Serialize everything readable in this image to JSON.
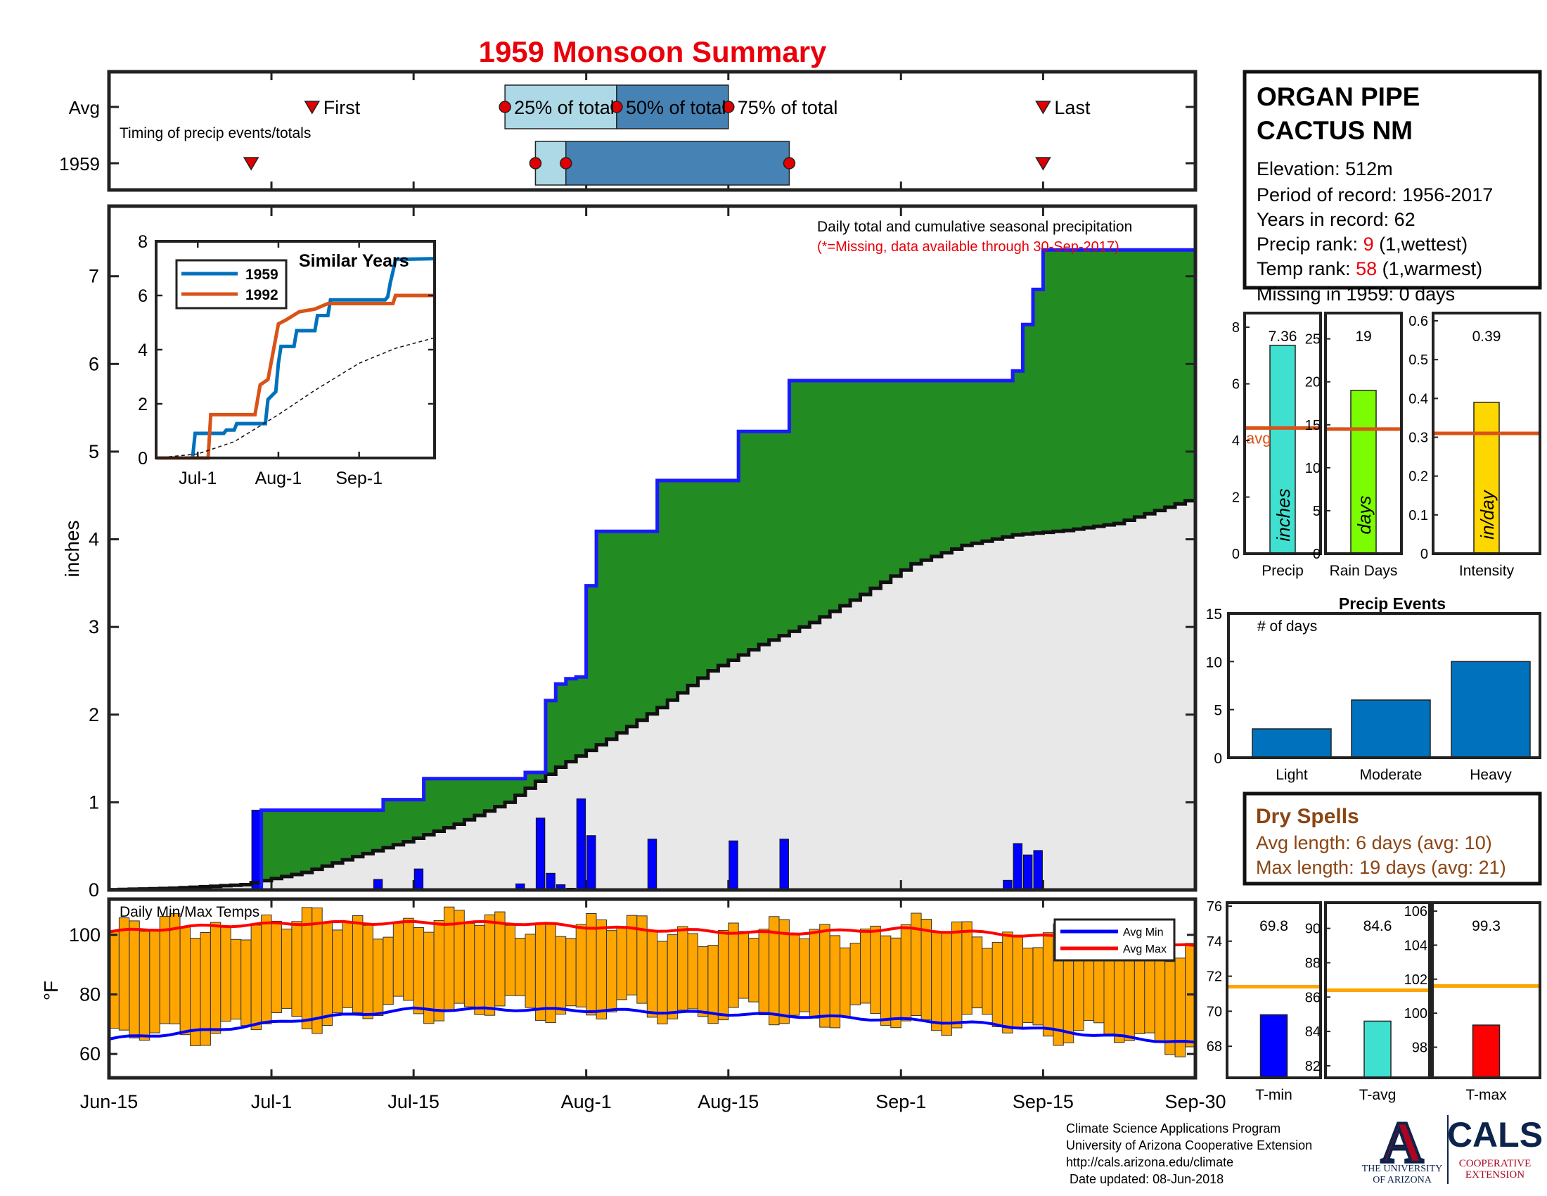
{
  "title": "1959 Monsoon Summary",
  "colors": {
    "title_red": "#e8000b",
    "fill_green": "#228b22",
    "avg_gray": "#e8e8e8",
    "cum_blue": "#1a1aff",
    "rain_blue": "#0000ff",
    "timing_light": "#add8e6",
    "timing_dark": "#4682b4",
    "temp_bar": "#ffa500",
    "avg_min": "#0000ff",
    "avg_max": "#ff0000",
    "precip_bar": "#40e0d0",
    "raindays_bar": "#7cfc00",
    "intensity_bar": "#ffd700",
    "avg_line": "#d95319",
    "events_bar": "#0072bd",
    "dry_brown": "#8b4513",
    "sim_1959": "#0072bd",
    "sim_1992": "#d95319",
    "tavg_line": "#ffa500",
    "tmin_bar": "#0000ff",
    "tavg_bar": "#40e0d0",
    "tmax_bar": "#ff0000"
  },
  "station": {
    "name_line1": "ORGAN PIPE",
    "name_line2": "CACTUS NM",
    "elevation": "Elevation: 512m",
    "period": "Period of record: 1956-2017",
    "years": "Years in record: 62",
    "precip_rank_label": "Precip rank: ",
    "precip_rank_value": "9",
    "precip_rank_note": " (1,wettest)",
    "temp_rank_label": "Temp rank: ",
    "temp_rank_value": "58",
    "temp_rank_note": " (1,warmest)",
    "missing": "Missing in 1959: 0 days"
  },
  "footer": {
    "line1": "Climate Science Applications Program",
    "line2": "University of Arizona Cooperative Extension",
    "line3": "http://cals.arizona.edu/climate",
    "line4": " Date updated: 08-Jun-2018",
    "ua_line1": "THE UNIVERSITY",
    "ua_line2": "OF ARIZONA",
    "ua_letter": "A",
    "cals_big": "CALS",
    "cals_line1": "COOPERATIVE",
    "cals_line2": "EXTENSION"
  },
  "chart_data": [
    {
      "id": "timing",
      "type": "bar",
      "subtitle": "Timing of precip events/totals",
      "rows": [
        "Avg",
        "1959"
      ],
      "avg_labels": {
        "first": "First",
        "p25": "25% of total",
        "p50": "50% of total",
        "p75": "75% of total",
        "last": "Last"
      },
      "avg": {
        "first": "Jul-5",
        "p25": "Jul-24",
        "p50": "Aug-4",
        "p75": "Aug-15",
        "last": "Sep-15"
      },
      "y1959": {
        "first": "Jun-29",
        "p25": "Jul-27",
        "p50": "Jul-30",
        "p75": "Aug-21",
        "last": "Sep-15"
      }
    },
    {
      "id": "precip",
      "type": "area",
      "title": "Daily total and cumulative seasonal precipitation",
      "note": "(*=Missing, data available through 30-Sep-2017)",
      "ylabel": "inches",
      "ylim": [
        0,
        7.8
      ],
      "yticks": [
        0,
        1,
        2,
        3,
        4,
        5,
        6,
        7
      ],
      "x_tick_labels": [
        "Jun-15",
        "Jul-1",
        "Jul-15",
        "Aug-1",
        "Aug-15",
        "Sep-1",
        "Sep-15",
        "Sep-30"
      ],
      "x_tick_days": [
        0,
        16,
        30,
        47,
        61,
        78,
        92,
        107
      ],
      "daily": [
        {
          "date": "Jun-30",
          "inches": 0.91
        },
        {
          "date": "Jul-12",
          "inches": 0.12
        },
        {
          "date": "Jul-16",
          "inches": 0.24
        },
        {
          "date": "Jul-26",
          "inches": 0.07
        },
        {
          "date": "Jul-28",
          "inches": 0.82
        },
        {
          "date": "Jul-29",
          "inches": 0.19
        },
        {
          "date": "Jul-30",
          "inches": 0.06
        },
        {
          "date": "Jul-31",
          "inches": 0.02
        },
        {
          "date": "Aug-1",
          "inches": 1.04
        },
        {
          "date": "Aug-2",
          "inches": 0.62
        },
        {
          "date": "Aug-8",
          "inches": 0.58
        },
        {
          "date": "Aug-16",
          "inches": 0.56
        },
        {
          "date": "Aug-21",
          "inches": 0.58
        },
        {
          "date": "Sep-12",
          "inches": 0.11
        },
        {
          "date": "Sep-13",
          "inches": 0.53
        },
        {
          "date": "Sep-14",
          "inches": 0.4
        },
        {
          "date": "Sep-15",
          "inches": 0.45
        }
      ],
      "avg_cumulative": [
        {
          "date": "Jun-15",
          "inches": 0
        },
        {
          "date": "Jun-22",
          "inches": 0.02
        },
        {
          "date": "Jun-29",
          "inches": 0.06
        },
        {
          "date": "Jul-5",
          "inches": 0.2
        },
        {
          "date": "Jul-10",
          "inches": 0.38
        },
        {
          "date": "Jul-15",
          "inches": 0.55
        },
        {
          "date": "Jul-20",
          "inches": 0.75
        },
        {
          "date": "Jul-25",
          "inches": 1.0
        },
        {
          "date": "Jul-30",
          "inches": 1.4
        },
        {
          "date": "Aug-4",
          "inches": 1.72
        },
        {
          "date": "Aug-9",
          "inches": 2.08
        },
        {
          "date": "Aug-14",
          "inches": 2.5
        },
        {
          "date": "Aug-19",
          "inches": 2.8
        },
        {
          "date": "Aug-24",
          "inches": 3.05
        },
        {
          "date": "Aug-29",
          "inches": 3.37
        },
        {
          "date": "Sep-3",
          "inches": 3.72
        },
        {
          "date": "Sep-8",
          "inches": 3.93
        },
        {
          "date": "Sep-13",
          "inches": 4.05
        },
        {
          "date": "Sep-18",
          "inches": 4.1
        },
        {
          "date": "Sep-23",
          "inches": 4.18
        },
        {
          "date": "Sep-30",
          "inches": 4.44
        }
      ]
    },
    {
      "id": "similar_years",
      "type": "line",
      "title": "Similar Years",
      "ylim": [
        0,
        8
      ],
      "yticks": [
        0,
        2,
        4,
        6,
        8
      ],
      "x_tick_labels": [
        "Jul-1",
        "Aug-1",
        "Sep-1"
      ],
      "series": [
        {
          "name": "1959",
          "points": [
            [
              "Jun-15",
              0
            ],
            [
              "Jun-29",
              0
            ],
            [
              "Jun-30",
              0.91
            ],
            [
              "Jul-11",
              0.91
            ],
            [
              "Jul-12",
              1.03
            ],
            [
              "Jul-15",
              1.03
            ],
            [
              "Jul-16",
              1.27
            ],
            [
              "Jul-27",
              1.27
            ],
            [
              "Jul-28",
              2.16
            ],
            [
              "Jul-31",
              2.45
            ],
            [
              "Aug-1",
              3.5
            ],
            [
              "Aug-2",
              4.12
            ],
            [
              "Aug-7",
              4.12
            ],
            [
              "Aug-8",
              4.7
            ],
            [
              "Aug-15",
              4.7
            ],
            [
              "Aug-16",
              5.26
            ],
            [
              "Aug-20",
              5.26
            ],
            [
              "Aug-21",
              5.84
            ],
            [
              "Sep-11",
              5.84
            ],
            [
              "Sep-12",
              5.95
            ],
            [
              "Sep-13",
              6.48
            ],
            [
              "Sep-14",
              6.88
            ],
            [
              "Sep-15",
              7.33
            ],
            [
              "Sep-30",
              7.36
            ]
          ]
        },
        {
          "name": "1992",
          "points": [
            [
              "Jun-15",
              0
            ],
            [
              "Jul-5",
              0
            ],
            [
              "Jul-6",
              1.6
            ],
            [
              "Jul-23",
              1.6
            ],
            [
              "Jul-25",
              2.7
            ],
            [
              "Jul-28",
              2.9
            ],
            [
              "Aug-1",
              4.95
            ],
            [
              "Aug-4",
              5.1
            ],
            [
              "Aug-9",
              5.4
            ],
            [
              "Aug-15",
              5.5
            ],
            [
              "Aug-20",
              5.7
            ],
            [
              "Sep-14",
              5.7
            ],
            [
              "Sep-15",
              6.0
            ],
            [
              "Sep-30",
              6.0
            ]
          ]
        },
        {
          "points": [
            [
              "Jun-15",
              0
            ],
            [
              "Jul-1",
              0.15
            ],
            [
              "Jul-15",
              0.6
            ],
            [
              "Aug-1",
              1.6
            ],
            [
              "Aug-15",
              2.5
            ],
            [
              "Sep-1",
              3.5
            ],
            [
              "Sep-15",
              4.05
            ],
            [
              "Sep-30",
              4.44
            ]
          ]
        }
      ]
    },
    {
      "id": "temps",
      "type": "bar",
      "title": "Daily Min/Max Temps",
      "ylabel": "°F",
      "ylim": [
        52,
        112
      ],
      "yticks": [
        60,
        80,
        100
      ],
      "legend": [
        "Avg Min",
        "Avg Max"
      ],
      "avg_min": [
        [
          "Jun-15",
          65
        ],
        [
          "Jun-25",
          68
        ],
        [
          "Jul-5",
          72
        ],
        [
          "Jul-15",
          75
        ],
        [
          "Jul-25",
          75
        ],
        [
          "Aug-5",
          74.5
        ],
        [
          "Aug-20",
          73
        ],
        [
          "Sep-1",
          71.5
        ],
        [
          "Sep-10",
          70
        ],
        [
          "Sep-20",
          66.5
        ],
        [
          "Sep-30",
          63.5
        ]
      ],
      "avg_max": [
        [
          "Jun-15",
          101
        ],
        [
          "Jun-25",
          103
        ],
        [
          "Jul-5",
          104
        ],
        [
          "Jul-15",
          104
        ],
        [
          "Jul-25",
          104
        ],
        [
          "Aug-5",
          102
        ],
        [
          "Aug-20",
          100.5
        ],
        [
          "Sep-1",
          102
        ],
        [
          "Sep-10",
          100.5
        ],
        [
          "Sep-20",
          98.5
        ],
        [
          "Sep-30",
          96
        ]
      ]
    },
    {
      "id": "season_totals",
      "type": "bar",
      "panels": [
        {
          "name": "Precip",
          "axis_label": "inches",
          "value": 7.36,
          "value_label": "7.36",
          "avg": 4.44,
          "avg_label": "avg",
          "ylim": [
            0,
            8.5
          ],
          "yticks": [
            0,
            2,
            4,
            6,
            8
          ],
          "ytick_labels": [
            "0",
            "2",
            "4",
            "6",
            "8"
          ]
        },
        {
          "name": "Rain Days",
          "axis_label": "days",
          "value": 19,
          "value_label": "19",
          "avg": 14.5,
          "ylim": [
            0,
            28
          ],
          "yticks": [
            0,
            5,
            10,
            15,
            20,
            25
          ],
          "ytick_labels": [
            "0",
            "5",
            "10",
            "15",
            "20",
            "25"
          ]
        },
        {
          "name": "Intensity",
          "axis_label": "in/day",
          "value": 0.39,
          "value_label": "0.39",
          "avg": 0.31,
          "ylim": [
            0,
            0.62
          ],
          "yticks": [
            0,
            0.1,
            0.2,
            0.3,
            0.4,
            0.5,
            0.6
          ],
          "ytick_labels": [
            "0",
            "0.1",
            "0.2",
            "0.3",
            "0.4",
            "0.5",
            "0.6"
          ]
        }
      ]
    },
    {
      "id": "precip_events",
      "type": "bar",
      "title": "Precip Events",
      "ylabel": "# of days",
      "categories": [
        "Light",
        "Moderate",
        "Heavy"
      ],
      "values": [
        3,
        6,
        10
      ],
      "ylim": [
        0,
        15
      ],
      "yticks": [
        0,
        5,
        10,
        15
      ]
    },
    {
      "id": "dry_spells",
      "type": "table",
      "title": "Dry Spells",
      "avg_length": "Avg length: 6 days (avg: 10)",
      "max_length": "Max length: 19 days (avg: 21)"
    },
    {
      "id": "temp_summary",
      "type": "bar",
      "panels": [
        {
          "name": "T-min",
          "value": 69.8,
          "value_label": "69.8",
          "avg": 71.4,
          "ylim": [
            66.2,
            76.2
          ],
          "yticks": [
            68,
            70,
            72,
            74,
            76
          ]
        },
        {
          "name": "T-avg",
          "value": 84.6,
          "value_label": "84.6",
          "avg": 86.4,
          "ylim": [
            81.3,
            91.5
          ],
          "yticks": [
            82,
            84,
            86,
            88,
            90
          ]
        },
        {
          "name": "T-max",
          "value": 99.3,
          "value_label": "99.3",
          "avg": 101.6,
          "ylim": [
            96.2,
            106.5
          ],
          "yticks": [
            98,
            100,
            102,
            104,
            106
          ]
        }
      ]
    }
  ]
}
